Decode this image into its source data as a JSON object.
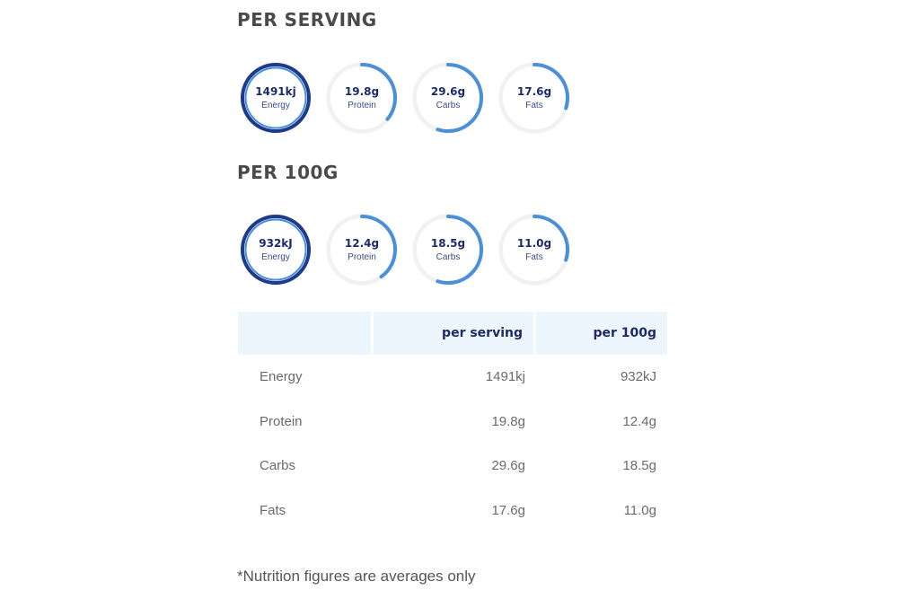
{
  "colors": {
    "dark_blue": "#1e3a8a",
    "light_blue": "#4a90d9",
    "ring_bg": "#f1f1f1",
    "header_bg": "#edf6fc",
    "text_navy": "#1f2a6b"
  },
  "per_serving": {
    "title": "PER SERVING",
    "rings": [
      {
        "value": "1491kj",
        "label": "Energy",
        "fill": 1.0,
        "style": "dark"
      },
      {
        "value": "19.8g",
        "label": "Protein",
        "fill": 0.36,
        "style": "light"
      },
      {
        "value": "29.6g",
        "label": "Carbs",
        "fill": 0.55,
        "style": "light"
      },
      {
        "value": "17.6g",
        "label": "Fats",
        "fill": 0.3,
        "style": "light"
      }
    ]
  },
  "per_100g": {
    "title": "PER 100G",
    "rings": [
      {
        "value": "932kJ",
        "label": "Energy",
        "fill": 1.0,
        "style": "dark"
      },
      {
        "value": "12.4g",
        "label": "Protein",
        "fill": 0.4,
        "style": "light"
      },
      {
        "value": "18.5g",
        "label": "Carbs",
        "fill": 0.55,
        "style": "light"
      },
      {
        "value": "11.0g",
        "label": "Fats",
        "fill": 0.3,
        "style": "light"
      }
    ]
  },
  "table": {
    "headers": [
      "",
      "per serving",
      "per 100g"
    ],
    "rows": [
      [
        "Energy",
        "1491kj",
        "932kJ"
      ],
      [
        "Protein",
        "19.8g",
        "12.4g"
      ],
      [
        "Carbs",
        "29.6g",
        "18.5g"
      ],
      [
        "Fats",
        "17.6g",
        "11.0g"
      ]
    ]
  },
  "footnote": "*Nutrition figures are averages only"
}
